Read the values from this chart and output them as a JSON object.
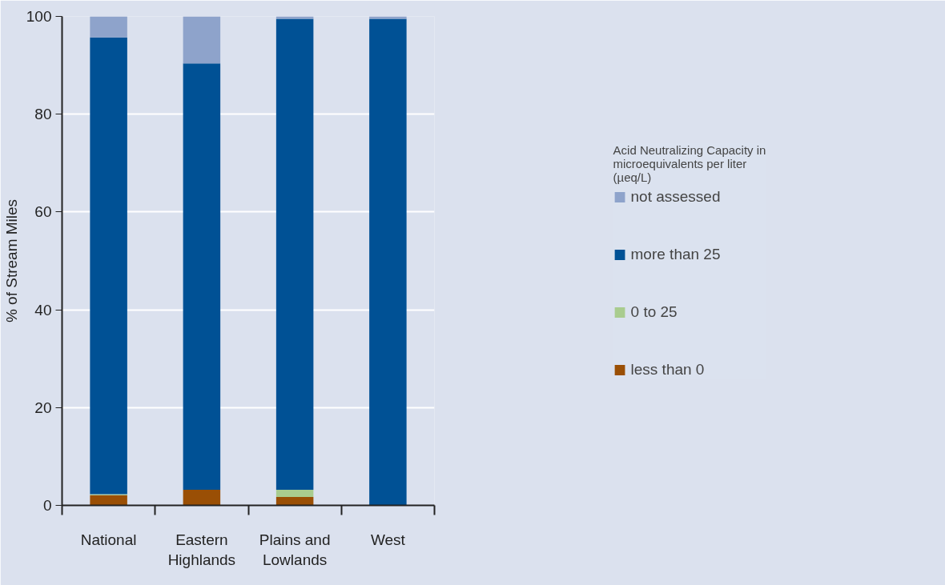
{
  "chart_data": {
    "type": "bar",
    "stacked": true,
    "ylabel": "% of Stream Miles",
    "legend_title": "Acid Neutralizing Capacity in microequivalents per liter (µeq/L)",
    "categories": [
      "National",
      "Eastern Highlands",
      "Plains and Lowlands",
      "West"
    ],
    "series": [
      {
        "name": "less than 0",
        "color": "#9a4f05",
        "values": [
          2.1,
          3.2,
          1.7,
          0
        ]
      },
      {
        "name": "0 to 25",
        "color": "#a9cc8f",
        "values": [
          0.2,
          0,
          1.5,
          0
        ]
      },
      {
        "name": "more than 25",
        "color": "#005195",
        "values": [
          93.4,
          87.2,
          96.3,
          99.5
        ]
      },
      {
        "name": "not assessed",
        "color": "#8ea3cb",
        "values": [
          4.3,
          9.6,
          0.5,
          0.5
        ]
      }
    ],
    "ylim": [
      0,
      100
    ],
    "yticks": [
      0,
      20,
      40,
      60,
      80,
      100
    ],
    "grid": "y",
    "legend": "right"
  }
}
